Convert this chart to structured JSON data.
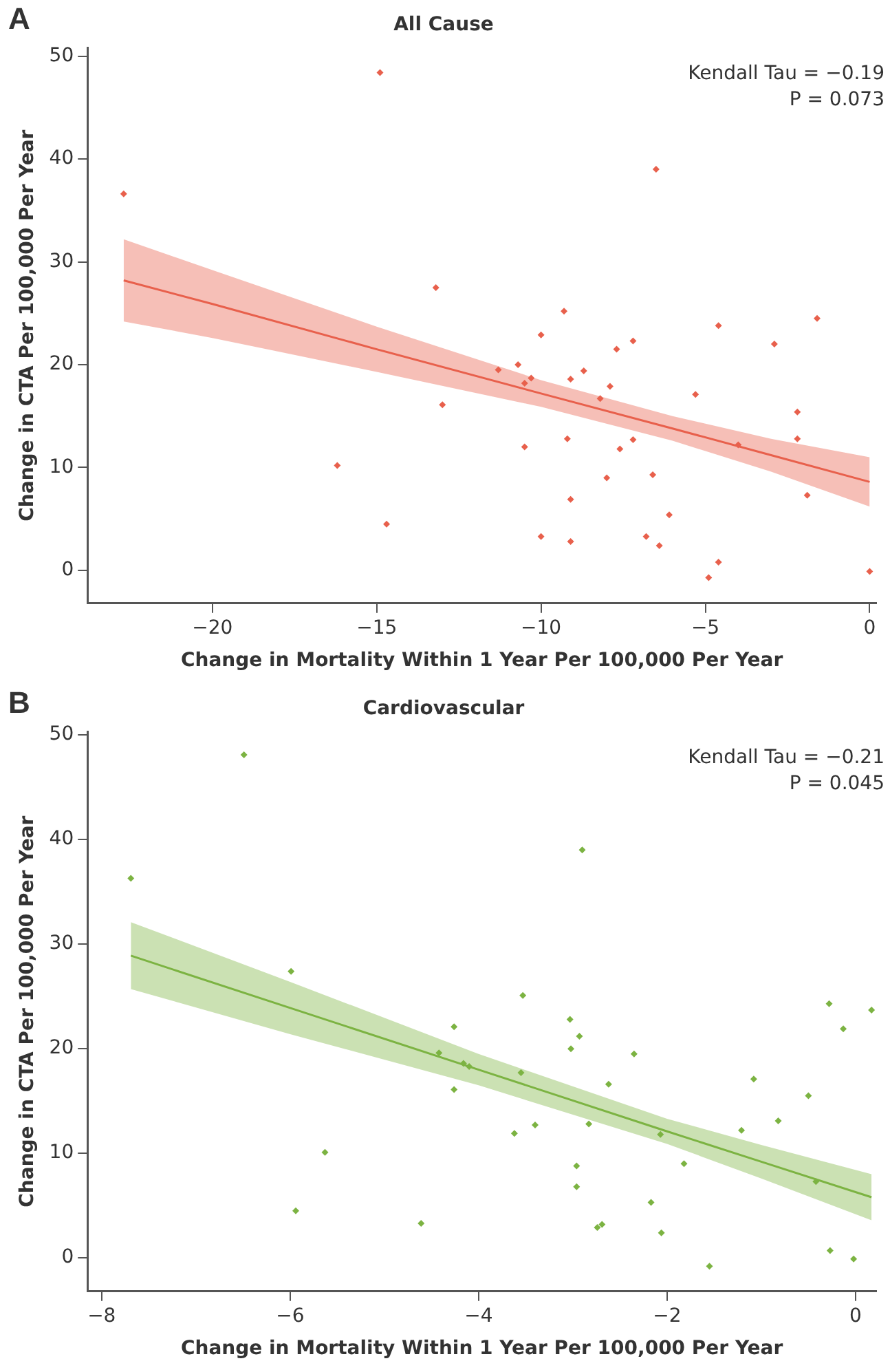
{
  "chart_data": [
    {
      "type": "scatter",
      "title": "All Cause",
      "xlabel": "Change in Mortality Within 1 Year Per 100,000 Per Year",
      "ylabel": "Change in CTA Per 100,000 Per Year",
      "annotations": [
        "A",
        "Kendall Tau = −0.19",
        "P = 0.073"
      ],
      "xlim": [
        -23.8,
        0.2
      ],
      "ylim": [
        -3.2,
        50.8
      ],
      "xticks": [
        -20,
        -15,
        -10,
        -5,
        0
      ],
      "yticks": [
        0,
        10,
        20,
        30,
        40,
        50
      ],
      "grid": false,
      "series": [
        {
          "marker": "diamond",
          "color": "#e8604c",
          "x": [
            -22.7,
            -14.9,
            -6.5,
            -13.2,
            -9.3,
            -10.0,
            -7.2,
            -7.7,
            -4.6,
            -2.9,
            -1.6,
            -11.3,
            -10.7,
            -10.5,
            -10.3,
            -9.1,
            -8.7,
            -8.2,
            -7.9,
            -5.3,
            -13.0,
            -2.2,
            -2.2,
            -4.0,
            -9.2,
            -10.5,
            -7.6,
            -7.2,
            -16.2,
            -8.0,
            -6.6,
            -1.9,
            -9.1,
            -14.7,
            -6.1,
            -10.0,
            -9.1,
            -6.8,
            -6.4,
            -4.6,
            -4.9,
            0
          ],
          "values": [
            36.6,
            48.4,
            39.0,
            27.5,
            25.2,
            22.9,
            22.3,
            21.5,
            23.8,
            22.0,
            24.5,
            19.5,
            20.0,
            18.2,
            18.7,
            18.6,
            19.4,
            16.7,
            17.9,
            17.1,
            16.1,
            15.4,
            12.8,
            12.2,
            12.8,
            12.0,
            11.8,
            12.7,
            10.2,
            9.0,
            9.3,
            7.3,
            6.9,
            4.5,
            5.4,
            3.3,
            2.8,
            3.3,
            2.4,
            0.8,
            -0.7,
            -0.1
          ]
        },
        {
          "type": "line",
          "color": "#e8604c",
          "x": [
            -22.7,
            -20,
            -15,
            -10,
            -6,
            -3,
            0
          ],
          "values": [
            28.2,
            25.9,
            21.5,
            17.2,
            13.8,
            11.2,
            8.6
          ],
          "lower": [
            24.2,
            22.6,
            19.3,
            15.9,
            12.6,
            9.6,
            6.2
          ],
          "upper": [
            32.2,
            29.2,
            23.7,
            18.5,
            15.0,
            12.8,
            11.0
          ]
        }
      ]
    },
    {
      "type": "scatter",
      "title": "Cardiovascular",
      "xlabel": "Change in Mortality Within 1 Year Per 100,000 Per Year",
      "ylabel": "Change in CTA Per 100,000 Per Year",
      "annotations": [
        "B",
        "Kendall Tau = −0.21",
        "P = 0.045"
      ],
      "xlim": [
        -8.15,
        0.22
      ],
      "ylim": [
        -3.2,
        50.3
      ],
      "xticks": [
        -8,
        -6,
        -4,
        -2,
        0
      ],
      "yticks": [
        0,
        10,
        20,
        30,
        40,
        50
      ],
      "grid": false,
      "series": [
        {
          "marker": "diamond",
          "color": "#7cb342",
          "x": [
            -7.69,
            -6.49,
            -5.99,
            -2.9,
            -4.26,
            -3.53,
            -3.03,
            -2.93,
            -0.28,
            -0.13,
            0.17,
            -3.02,
            -2.35,
            -4.42,
            -4.16,
            -4.1,
            -3.55,
            -4.26,
            -2.62,
            -1.08,
            -0.5,
            -0.82,
            -1.21,
            -3.4,
            -3.62,
            -2.83,
            -2.07,
            -5.63,
            -2.96,
            -1.82,
            -2.96,
            -0.42,
            -2.17,
            -5.94,
            -4.61,
            -2.74,
            -2.69,
            -2.06,
            -0.27,
            -0.02,
            -1.55
          ],
          "values": [
            36.3,
            48.1,
            27.4,
            39.0,
            22.1,
            25.1,
            22.8,
            21.2,
            24.3,
            21.9,
            23.7,
            20.0,
            19.5,
            19.6,
            18.6,
            18.3,
            17.7,
            16.1,
            16.6,
            17.1,
            15.5,
            13.1,
            12.2,
            12.7,
            11.9,
            12.8,
            11.8,
            10.1,
            8.8,
            9.0,
            6.8,
            7.3,
            5.3,
            4.5,
            3.3,
            2.9,
            3.2,
            2.4,
            0.7,
            -0.1,
            -0.8
          ]
        },
        {
          "type": "line",
          "color": "#7cb342",
          "x": [
            -7.69,
            -6,
            -4,
            -2,
            -1,
            0.17
          ],
          "values": [
            28.9,
            23.9,
            18.0,
            12.1,
            9.2,
            5.8
          ],
          "lower": [
            25.7,
            21.4,
            16.5,
            10.9,
            7.6,
            3.6
          ],
          "upper": [
            32.1,
            26.4,
            19.5,
            13.3,
            10.8,
            8.0
          ]
        }
      ]
    }
  ]
}
